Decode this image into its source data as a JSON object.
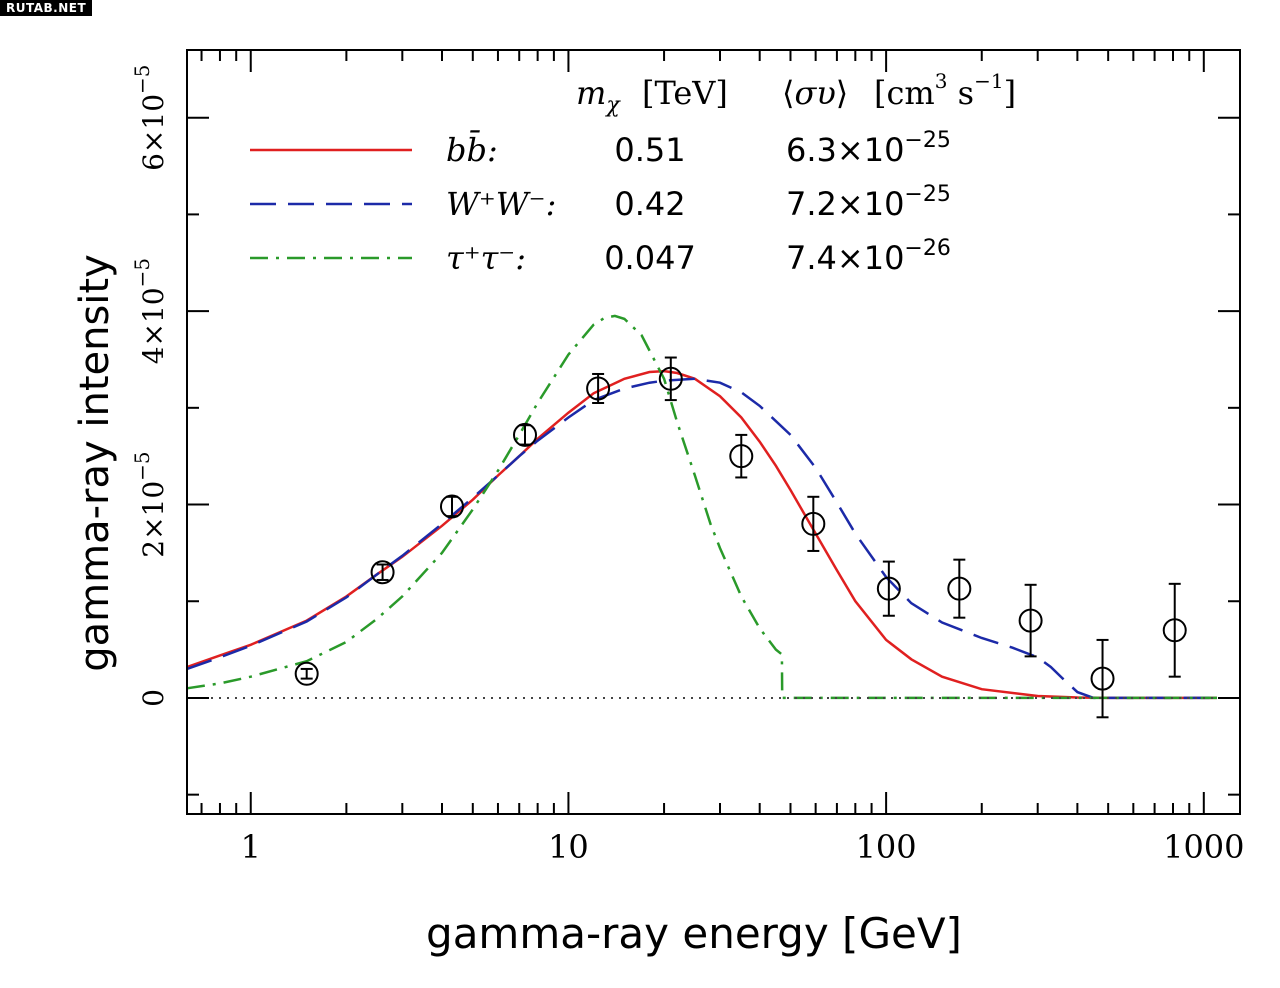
{
  "watermark": "RUTAB.NET",
  "chart_data": {
    "type": "line",
    "xlabel": "gamma-ray energy [GeV]",
    "ylabel": "gamma-ray intensity",
    "x_scale": "log",
    "xlim": [
      0.63,
      1300
    ],
    "ylim": [
      -1.2e-05,
      6.7e-05
    ],
    "x_ticks": [
      {
        "value": 1,
        "label": "1"
      },
      {
        "value": 10,
        "label": "10"
      },
      {
        "value": 100,
        "label": "100"
      },
      {
        "value": 1000,
        "label": "1000"
      }
    ],
    "y_ticks": [
      {
        "value": 0,
        "label": "0"
      },
      {
        "value": 2e-05,
        "mant": "2",
        "exp": "−5"
      },
      {
        "value": 4e-05,
        "mant": "4",
        "exp": "−5"
      },
      {
        "value": 6e-05,
        "mant": "6",
        "exp": "−5"
      }
    ],
    "legend": {
      "col_mass": "[TeV]",
      "col_cross": "[cm",
      "col_cross_sup": "3",
      "col_cross_s": " s",
      "col_cross_sup2": "−1",
      "col_cross_end": "]"
    },
    "series": [
      {
        "name": "bb̄:",
        "mass": "0.51",
        "cross_mant": "6.3×10",
        "cross_exp": "−25",
        "color": "#e02020",
        "dash": "solid",
        "x": [
          0.63,
          0.8,
          1,
          1.5,
          2,
          2.5,
          3,
          4,
          5,
          6,
          7,
          8,
          10,
          12,
          15,
          18,
          20,
          22,
          25,
          30,
          35,
          40,
          45,
          50,
          60,
          70,
          80,
          100,
          120,
          150,
          200,
          300,
          400,
          500,
          1000,
          1100
        ],
        "y": [
          3.2e-06,
          4.4e-06,
          5.5e-06,
          8e-06,
          1.05e-05,
          1.28e-05,
          1.46e-05,
          1.78e-05,
          2.05e-05,
          2.3e-05,
          2.5e-05,
          2.68e-05,
          2.95e-05,
          3.15e-05,
          3.3e-05,
          3.37e-05,
          3.38e-05,
          3.36e-05,
          3.3e-05,
          3.12e-05,
          2.9e-05,
          2.65e-05,
          2.4e-05,
          2.15e-05,
          1.7e-05,
          1.32e-05,
          1e-05,
          6e-06,
          4e-06,
          2.2e-06,
          9e-07,
          2e-07,
          5e-08,
          0,
          0,
          0
        ]
      },
      {
        "name": "W⁺W⁻:",
        "mass": "0.42",
        "cross_mant": "7.2×10",
        "cross_exp": "−25",
        "color": "#1c2aa8",
        "dash": "dashed",
        "x": [
          0.63,
          0.8,
          1,
          1.5,
          2,
          2.5,
          3,
          4,
          5,
          6,
          7,
          8,
          10,
          12,
          15,
          18,
          20,
          25,
          30,
          35,
          40,
          50,
          60,
          70,
          80,
          100,
          120,
          150,
          200,
          250,
          300,
          330,
          360,
          400,
          450,
          1100
        ],
        "y": [
          3e-06,
          4.2e-06,
          5.4e-06,
          7.9e-06,
          1.04e-05,
          1.28e-05,
          1.47e-05,
          1.8e-05,
          2.07e-05,
          2.3e-05,
          2.5e-05,
          2.66e-05,
          2.9e-05,
          3.08e-05,
          3.2e-05,
          3.26e-05,
          3.28e-05,
          3.3e-05,
          3.26e-05,
          3.16e-05,
          3.02e-05,
          2.72e-05,
          2.38e-05,
          2.02e-05,
          1.7e-05,
          1.25e-05,
          9.8e-06,
          7.8e-06,
          6.2e-06,
          5.2e-06,
          4.2e-06,
          3.2e-06,
          2e-06,
          6e-07,
          0,
          0
        ]
      },
      {
        "name": "τ⁺τ⁻:",
        "mass": "0.047",
        "cross_mant": "7.4×10",
        "cross_exp": "−26",
        "color": "#2a9a2a",
        "dash": "dashdot",
        "x": [
          0.63,
          0.8,
          1,
          1.5,
          2,
          2.5,
          3,
          4,
          5,
          6,
          7,
          8,
          10,
          12,
          13,
          14,
          15,
          17,
          20,
          22,
          25,
          28,
          30,
          35,
          40,
          45,
          47,
          47.1,
          60,
          100,
          1000,
          1100
        ],
        "y": [
          1e-06,
          1.5e-06,
          2.2e-06,
          3.8e-06,
          5.8e-06,
          8.2e-06,
          1.05e-05,
          1.5e-05,
          1.95e-05,
          2.35e-05,
          2.72e-05,
          3.05e-05,
          3.55e-05,
          3.86e-05,
          3.93e-05,
          3.95e-05,
          3.92e-05,
          3.75e-05,
          3.3e-05,
          2.85e-05,
          2.3e-05,
          1.8e-05,
          1.55e-05,
          1.05e-05,
          7.2e-06,
          5e-06,
          4.5e-06,
          0,
          0,
          0,
          0,
          0
        ]
      }
    ],
    "data_points": {
      "x": [
        1.5,
        2.6,
        4.3,
        7.3,
        12.4,
        21,
        35,
        59,
        102,
        170,
        285,
        480,
        810
      ],
      "y": [
        2.5e-06,
        1.3e-05,
        1.98e-05,
        2.72e-05,
        3.2e-05,
        3.3e-05,
        2.5e-05,
        1.8e-05,
        1.13e-05,
        1.13e-05,
        8e-06,
        2e-06,
        7e-06
      ],
      "err": [
        5e-07,
        8e-07,
        1e-06,
        1e-06,
        1.5e-06,
        2.2e-06,
        2.2e-06,
        2.8e-06,
        2.8e-06,
        3e-06,
        3.7e-06,
        4e-06,
        4.8e-06
      ]
    },
    "zero_line": "dotted",
    "grid": false
  }
}
